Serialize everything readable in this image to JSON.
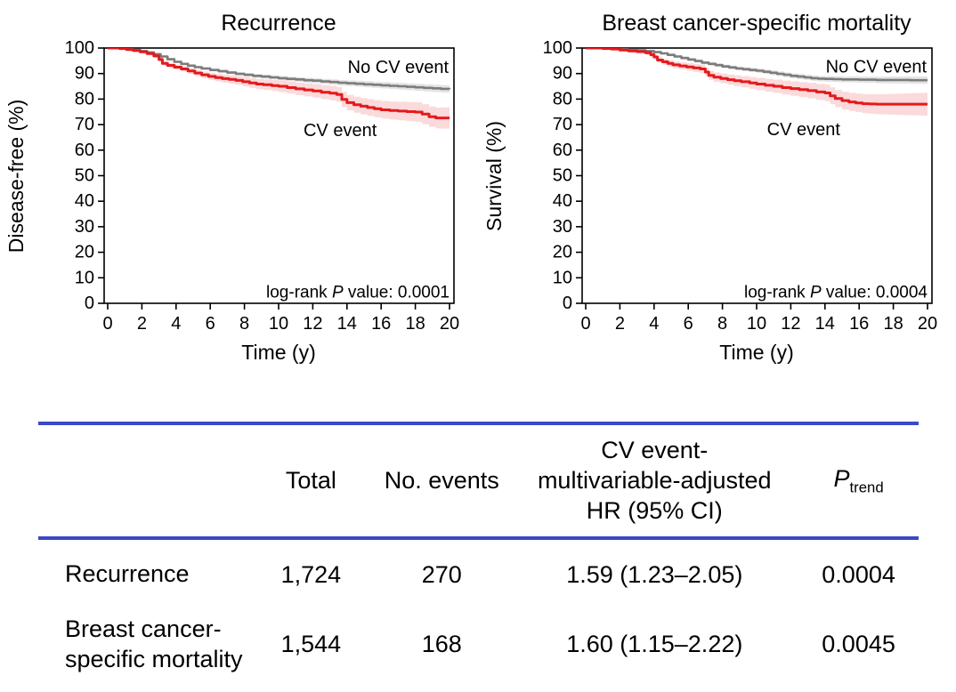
{
  "colors": {
    "cv_event_line": "#e41a1c",
    "cv_event_band": "rgba(228,26,28,0.16)",
    "no_cv_event_line": "#7c7c7c",
    "no_cv_event_band": "rgba(130,130,130,0.22)",
    "table_rule": "#3b49c4",
    "text": "#000000"
  },
  "chart_data": [
    {
      "type": "line",
      "subtype": "kaplan-meier-step",
      "title": "Recurrence",
      "xlabel": "Time (y)",
      "ylabel": "Disease-free (%)",
      "xlim": [
        0,
        20
      ],
      "ylim": [
        0,
        100
      ],
      "xticks": [
        0,
        2,
        4,
        6,
        8,
        10,
        12,
        14,
        16,
        18,
        20
      ],
      "yticks": [
        0,
        10,
        20,
        30,
        40,
        50,
        60,
        70,
        80,
        90,
        100
      ],
      "grid": false,
      "logrank": {
        "pre": "log-rank ",
        "p": "P",
        "post": " value: 0.0001"
      },
      "series": [
        {
          "name": "No CV event",
          "color": "#7c7c7c",
          "band_color": "rgba(130,130,130,0.22)",
          "band_halfwidth": [
            0.15,
            1.5
          ],
          "label_anchor": "end",
          "label_t": 19.95,
          "label_v": 90.2,
          "points": [
            [
              0,
              100
            ],
            [
              0.7,
              99.8
            ],
            [
              1.1,
              99.5
            ],
            [
              1.5,
              99.2
            ],
            [
              1.9,
              98.8
            ],
            [
              2.3,
              98.3
            ],
            [
              2.7,
              97.6
            ],
            [
              3.1,
              96.7
            ],
            [
              3.5,
              95.6
            ],
            [
              3.9,
              94.6
            ],
            [
              4.3,
              93.8
            ],
            [
              4.7,
              93.1
            ],
            [
              5.1,
              92.5
            ],
            [
              5.5,
              92
            ],
            [
              6,
              91.4
            ],
            [
              6.5,
              90.9
            ],
            [
              7,
              90.4
            ],
            [
              7.5,
              89.9
            ],
            [
              8,
              89.5
            ],
            [
              8.5,
              89.1
            ],
            [
              9,
              88.8
            ],
            [
              9.5,
              88.5
            ],
            [
              10,
              88.2
            ],
            [
              10.5,
              87.9
            ],
            [
              11,
              87.7
            ],
            [
              11.5,
              87.4
            ],
            [
              12,
              87.2
            ],
            [
              12.5,
              86.9
            ],
            [
              13,
              86.7
            ],
            [
              13.5,
              86.4
            ],
            [
              14,
              86.2
            ],
            [
              14.5,
              86
            ],
            [
              15,
              85.8
            ],
            [
              15.5,
              85.6
            ],
            [
              16,
              85.4
            ],
            [
              16.5,
              85.2
            ],
            [
              17,
              85
            ],
            [
              17.5,
              84.8
            ],
            [
              18,
              84.6
            ],
            [
              18.5,
              84.4
            ],
            [
              19,
              84.2
            ],
            [
              19.5,
              84
            ],
            [
              20,
              83.9
            ]
          ]
        },
        {
          "name": "CV event",
          "color": "#e41a1c",
          "band_color": "rgba(228,26,28,0.16)",
          "band_halfwidth": [
            0.2,
            4.2
          ],
          "label_anchor": "middle",
          "label_t": 13.6,
          "label_v": 65.5,
          "points": [
            [
              0,
              100
            ],
            [
              0.7,
              99.8
            ],
            [
              1.1,
              99.4
            ],
            [
              1.5,
              99
            ],
            [
              1.9,
              98.5
            ],
            [
              2.3,
              97.8
            ],
            [
              2.7,
              96.9
            ],
            [
              3,
              95.5
            ],
            [
              3.2,
              94
            ],
            [
              3.5,
              93.2
            ],
            [
              3.9,
              92.5
            ],
            [
              4.3,
              91.8
            ],
            [
              4.7,
              91
            ],
            [
              5.1,
              90.2
            ],
            [
              5.5,
              89.5
            ],
            [
              5.9,
              88.9
            ],
            [
              6.3,
              88.4
            ],
            [
              6.7,
              88
            ],
            [
              7.1,
              87.7
            ],
            [
              7.5,
              87.3
            ],
            [
              7.9,
              86.8
            ],
            [
              8.3,
              86.3
            ],
            [
              8.7,
              85.9
            ],
            [
              9.1,
              85.6
            ],
            [
              9.6,
              85.3
            ],
            [
              10,
              85
            ],
            [
              10.5,
              84.5
            ],
            [
              11,
              84
            ],
            [
              11.5,
              83.6
            ],
            [
              12,
              83.2
            ],
            [
              12.5,
              82.7
            ],
            [
              13,
              82.3
            ],
            [
              13.4,
              81.8
            ],
            [
              13.7,
              79.9
            ],
            [
              14,
              78.6
            ],
            [
              14.4,
              77.8
            ],
            [
              14.8,
              77.2
            ],
            [
              15.2,
              76.7
            ],
            [
              15.6,
              76.2
            ],
            [
              16,
              75.8
            ],
            [
              16.5,
              75.5
            ],
            [
              17,
              75.3
            ],
            [
              17.5,
              75.1
            ],
            [
              18,
              74.9
            ],
            [
              18.4,
              74.1
            ],
            [
              18.8,
              73.1
            ],
            [
              19.2,
              72.6
            ],
            [
              20,
              72.6
            ]
          ]
        }
      ]
    },
    {
      "type": "line",
      "subtype": "kaplan-meier-step",
      "title": "Breast cancer-specific mortality",
      "xlabel": "Time (y)",
      "ylabel": "Survival (%)",
      "xlim": [
        0,
        20
      ],
      "ylim": [
        0,
        100
      ],
      "xticks": [
        0,
        2,
        4,
        6,
        8,
        10,
        12,
        14,
        16,
        18,
        20
      ],
      "yticks": [
        0,
        10,
        20,
        30,
        40,
        50,
        60,
        70,
        80,
        90,
        100
      ],
      "grid": false,
      "logrank": {
        "pre": "log-rank ",
        "p": "P",
        "post": " value: 0.0004"
      },
      "series": [
        {
          "name": "No CV event",
          "color": "#7c7c7c",
          "band_color": "rgba(130,130,130,0.22)",
          "band_halfwidth": [
            0.15,
            1.5
          ],
          "label_anchor": "end",
          "label_t": 19.95,
          "label_v": 90.5,
          "points": [
            [
              0,
              100
            ],
            [
              1,
              99.9
            ],
            [
              1.5,
              99.7
            ],
            [
              2,
              99.5
            ],
            [
              2.5,
              99.3
            ],
            [
              3,
              99.1
            ],
            [
              3.5,
              98.8
            ],
            [
              4,
              98.4
            ],
            [
              4.4,
              97.9
            ],
            [
              4.8,
              97.3
            ],
            [
              5.2,
              96.7
            ],
            [
              5.6,
              96.1
            ],
            [
              6,
              95.5
            ],
            [
              6.4,
              94.9
            ],
            [
              6.8,
              94.3
            ],
            [
              7.2,
              93.8
            ],
            [
              7.6,
              93.3
            ],
            [
              8,
              92.8
            ],
            [
              8.4,
              92.4
            ],
            [
              8.8,
              92
            ],
            [
              9.2,
              91.7
            ],
            [
              9.6,
              91.4
            ],
            [
              10,
              91.1
            ],
            [
              10.4,
              90.7
            ],
            [
              10.8,
              90.3
            ],
            [
              11.2,
              89.9
            ],
            [
              11.6,
              89.5
            ],
            [
              12,
              89.1
            ],
            [
              12.4,
              88.8
            ],
            [
              12.8,
              88.5
            ],
            [
              13.2,
              88.2
            ],
            [
              13.6,
              88
            ],
            [
              14,
              87.9
            ],
            [
              14.5,
              87.8
            ],
            [
              15,
              87.7
            ],
            [
              16,
              87.6
            ],
            [
              17,
              87.5
            ],
            [
              18,
              87.5
            ],
            [
              19,
              87.4
            ],
            [
              20,
              87.4
            ]
          ]
        },
        {
          "name": "CV event",
          "color": "#e41a1c",
          "band_color": "rgba(228,26,28,0.16)",
          "band_halfwidth": [
            0.2,
            4.5
          ],
          "label_anchor": "middle",
          "label_t": 12.75,
          "label_v": 65.8,
          "points": [
            [
              0,
              100
            ],
            [
              1,
              99.8
            ],
            [
              1.5,
              99.6
            ],
            [
              2,
              99.2
            ],
            [
              2.5,
              98.9
            ],
            [
              3,
              98.6
            ],
            [
              3.5,
              98.2
            ],
            [
              3.8,
              97.4
            ],
            [
              4,
              96.5
            ],
            [
              4.2,
              95.3
            ],
            [
              4.5,
              94.6
            ],
            [
              4.8,
              94
            ],
            [
              5.1,
              93.4
            ],
            [
              5.5,
              93
            ],
            [
              5.9,
              92.6
            ],
            [
              6.3,
              92.2
            ],
            [
              6.7,
              91.8
            ],
            [
              7,
              90.6
            ],
            [
              7.2,
              89.3
            ],
            [
              7.5,
              88.6
            ],
            [
              7.9,
              88.1
            ],
            [
              8.3,
              87.6
            ],
            [
              8.7,
              87.2
            ],
            [
              9.1,
              86.8
            ],
            [
              9.6,
              86.3
            ],
            [
              10,
              85.9
            ],
            [
              10.5,
              85.4
            ],
            [
              11,
              85
            ],
            [
              11.5,
              84.5
            ],
            [
              12,
              84.1
            ],
            [
              12.5,
              83.7
            ],
            [
              13,
              83.3
            ],
            [
              13.5,
              82.8
            ],
            [
              14,
              82.4
            ],
            [
              14.3,
              81.3
            ],
            [
              14.6,
              80.2
            ],
            [
              15,
              79.4
            ],
            [
              15.4,
              78.9
            ],
            [
              15.8,
              78.5
            ],
            [
              16.2,
              78.2
            ],
            [
              16.6,
              78.1
            ],
            [
              17,
              78
            ],
            [
              20,
              78
            ]
          ]
        }
      ]
    }
  ],
  "table": {
    "headers": {
      "label": "",
      "total": "Total",
      "events": "No. events",
      "hr": "CV event-\nmultivariable-adjusted\nHR (95% CI)",
      "p_label": "P",
      "p_sub": "trend"
    },
    "rows": [
      {
        "label": "Recurrence",
        "total": "1,724",
        "events": "270",
        "hr": "1.59 (1.23–2.05)",
        "p": "0.0004"
      },
      {
        "label": "Breast cancer-\nspecific mortality",
        "total": "1,544",
        "events": "168",
        "hr": "1.60 (1.15–2.22)",
        "p": "0.0045"
      }
    ]
  }
}
